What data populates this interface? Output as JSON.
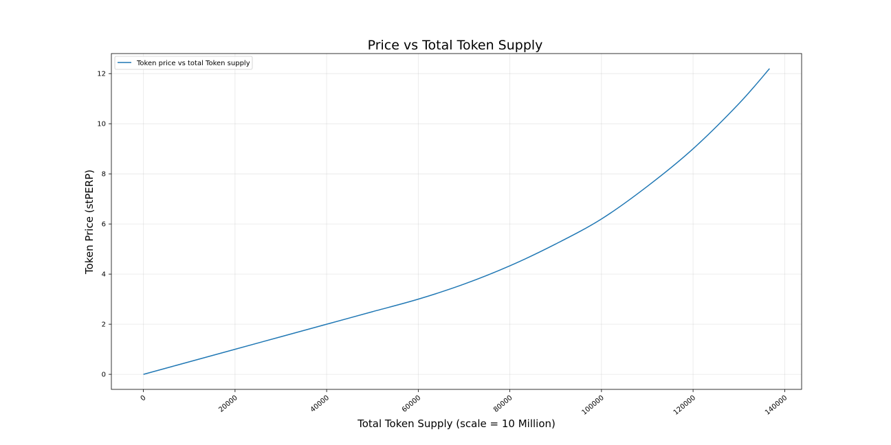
{
  "chart_data": {
    "type": "line",
    "title": "Price vs Total Token Supply",
    "xlabel": "Total Token Supply (scale = 10 Million)",
    "ylabel": "Token Price (stPERP)",
    "xlim": [
      -7000,
      143700
    ],
    "ylim": [
      -0.6,
      12.8
    ],
    "xticks": [
      0,
      20000,
      40000,
      60000,
      80000,
      100000,
      120000,
      140000
    ],
    "yticks": [
      0,
      2,
      4,
      6,
      8,
      10,
      12
    ],
    "grid": true,
    "legend_position": "top-left",
    "series": [
      {
        "name": "Token price vs total Token supply",
        "color": "#1f77b4",
        "x": [
          0,
          10000,
          20000,
          30000,
          40000,
          50000,
          60000,
          70000,
          80000,
          90000,
          100000,
          110000,
          120000,
          130000,
          136700
        ],
        "y": [
          0,
          0.5,
          1.0,
          1.5,
          2.0,
          2.5,
          3.0,
          3.6,
          4.33,
          5.2,
          6.2,
          7.5,
          9.0,
          10.8,
          12.2
        ]
      }
    ]
  }
}
